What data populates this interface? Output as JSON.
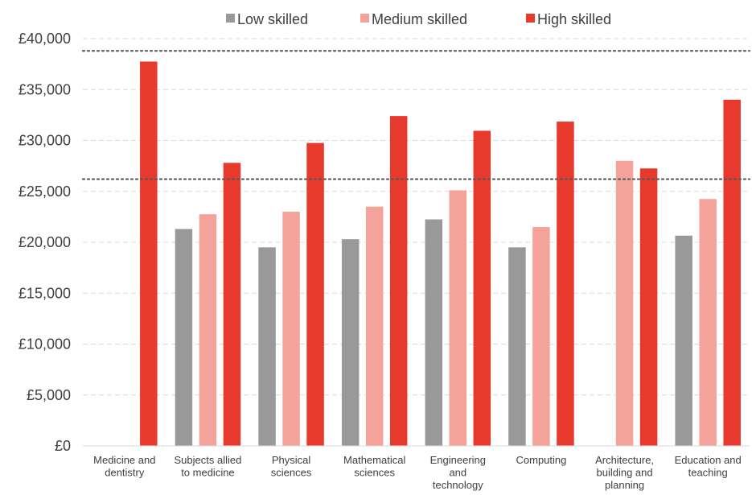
{
  "chart_data": {
    "type": "bar",
    "title": "",
    "xlabel": "",
    "ylabel": "",
    "ylim": [
      0,
      40000
    ],
    "y_ticks": [
      0,
      5000,
      10000,
      15000,
      20000,
      25000,
      30000,
      35000,
      40000
    ],
    "y_tick_labels": [
      "£0",
      "£5,000",
      "£10,000",
      "£15,000",
      "£20,000",
      "£25,000",
      "£30,000",
      "£35,000",
      "£40,000"
    ],
    "grid": "horizontal dashed",
    "legend_position": "top",
    "categories": [
      [
        "Medicine and",
        "dentistry"
      ],
      [
        "Subjects allied",
        "to medicine"
      ],
      [
        "Physical",
        "sciences"
      ],
      [
        "Mathematical",
        "sciences"
      ],
      [
        "Engineering",
        "and",
        "technology"
      ],
      [
        "Computing"
      ],
      [
        "Architecture,",
        "building and",
        "planning"
      ],
      [
        "Education and",
        "teaching"
      ]
    ],
    "series": [
      {
        "name": "Low skilled",
        "color": "#999999",
        "values": [
          null,
          21300,
          19500,
          20300,
          22250,
          19500,
          null,
          20650
        ]
      },
      {
        "name": "Medium skilled",
        "color": "#F4A39A",
        "values": [
          null,
          22750,
          23000,
          23500,
          25100,
          21500,
          28000,
          24250
        ]
      },
      {
        "name": "High skilled",
        "color": "#E8392D",
        "values": [
          37750,
          27800,
          29750,
          32400,
          30950,
          31850,
          27250,
          34000
        ]
      }
    ],
    "reference_lines": [
      {
        "value": 38800,
        "style": "dotted",
        "color": "#595959"
      },
      {
        "value": 26200,
        "style": "dotted",
        "color": "#595959"
      }
    ]
  }
}
